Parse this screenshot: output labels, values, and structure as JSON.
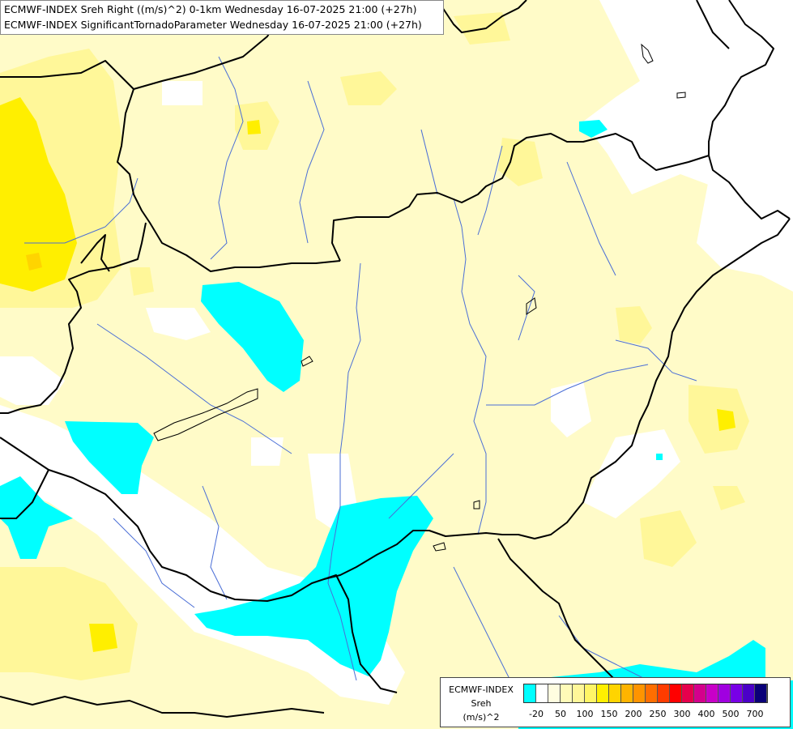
{
  "titles": {
    "line1": "ECMWF-INDEX Sreh Right ((m/s)^2) 0-1km Wednesday 16-07-2025 21:00 (+27h)",
    "line2": "ECMWF-INDEX SignificantTornadoParameter Wednesday 16-07-2025 21:00 (+27h)"
  },
  "legend": {
    "line1": "ECMWF-INDEX",
    "line2": "Sreh",
    "line3": "(m/s)^2",
    "colors": [
      "#00ffff",
      "#ffffff",
      "#fffde0",
      "#fffbb8",
      "#fff799",
      "#fff566",
      "#ffef00",
      "#ffd400",
      "#ffb400",
      "#ff9400",
      "#ff6e00",
      "#ff3c00",
      "#ff0000",
      "#e6004c",
      "#d4008c",
      "#c800c8",
      "#a000e0",
      "#7800e6",
      "#4b00c8",
      "#0a0078"
    ],
    "ticks": [
      "-20",
      "50",
      "100",
      "150",
      "200",
      "250",
      "300",
      "400",
      "500",
      "700"
    ]
  },
  "colors": {
    "pale_yellow": "#fffbc8",
    "yellow": "#fff799",
    "bright_yellow": "#ffef00",
    "orange": "#ffd400",
    "cyan": "#00ffff",
    "border": "#000000",
    "river": "#4a6ed6"
  }
}
